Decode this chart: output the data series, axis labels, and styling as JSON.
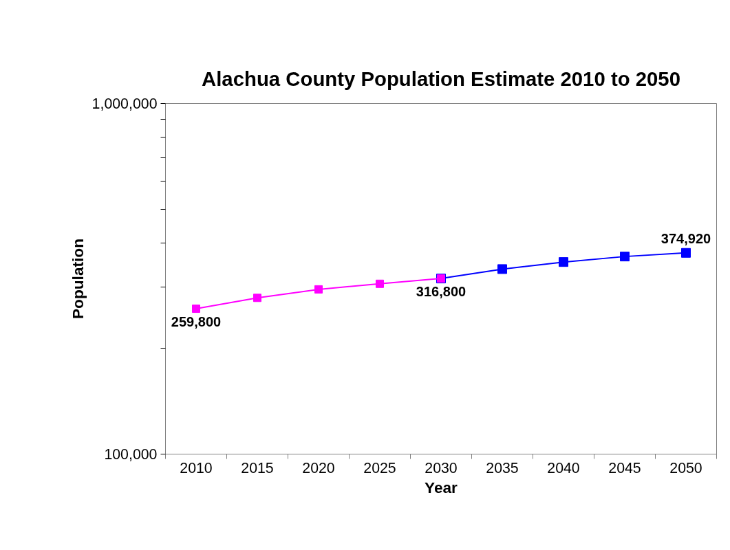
{
  "chart_data": {
    "type": "line",
    "title": "Alachua County Population Estimate 2010 to 2050",
    "xlabel": "Year",
    "ylabel": "Population",
    "categories": [
      "2010",
      "2015",
      "2020",
      "2025",
      "2030",
      "2035",
      "2040",
      "2045",
      "2050"
    ],
    "series": [
      {
        "color": "#0000ff",
        "values": [
          null,
          null,
          null,
          null,
          316800,
          337000,
          353000,
          366000,
          374920
        ],
        "value_labels": [
          null,
          null,
          null,
          null,
          null,
          null,
          null,
          null,
          "374,920"
        ]
      },
      {
        "color": "#ff00ff",
        "values": [
          259800,
          279000,
          295000,
          306000,
          316800,
          null,
          null,
          null,
          null
        ],
        "value_labels": [
          "259,800",
          null,
          null,
          null,
          "316,800",
          null,
          null,
          null,
          null
        ]
      }
    ],
    "log": true,
    "ylim": [
      100000,
      1000000
    ],
    "yticks": [
      {
        "value": 100000,
        "label": "100,000"
      },
      {
        "value": 200000,
        "label": null
      },
      {
        "value": 300000,
        "label": null
      },
      {
        "value": 400000,
        "label": null
      },
      {
        "value": 500000,
        "label": null
      },
      {
        "value": 600000,
        "label": null
      },
      {
        "value": 700000,
        "label": null
      },
      {
        "value": 800000,
        "label": null
      },
      {
        "value": 900000,
        "label": null
      },
      {
        "value": 1000000,
        "label": "1,000,000"
      }
    ],
    "marker": "square",
    "line_style": "solid"
  }
}
